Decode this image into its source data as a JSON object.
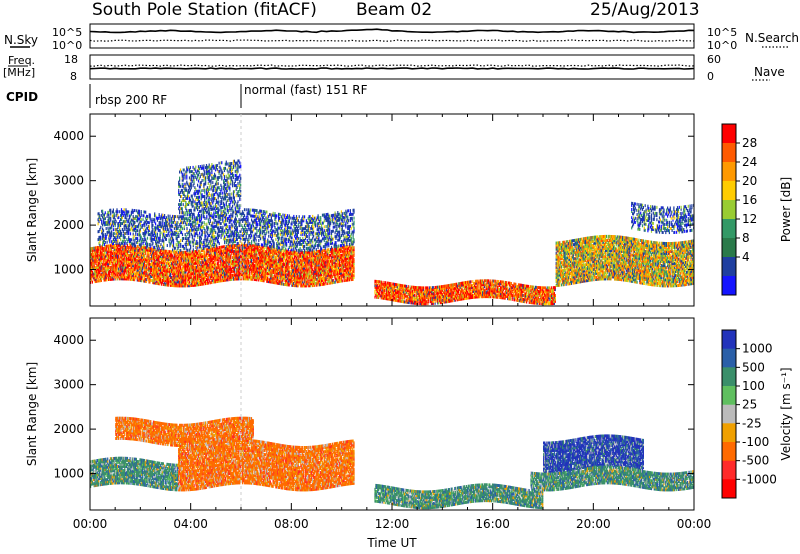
{
  "header": {
    "title": "South Pole Station (fitACF)",
    "beam": "Beam 02",
    "date": "25/Aug/2013"
  },
  "status_panels": {
    "nsky_label": "N.Sky",
    "nsky_ticks": [
      "10^5",
      "10^0"
    ],
    "nsearch_label": "N.Search",
    "nsearch_ticks": [
      "10^5",
      "10^0"
    ],
    "freq_label": "Freq.",
    "freq_unit": "[MHz]",
    "freq_ticks": [
      "18",
      "8"
    ],
    "nave_label": "Nave",
    "nave_ticks": [
      "60",
      "0"
    ],
    "cpid_label": "CPID",
    "cpid_segments": [
      {
        "label": "rbsp 200 RF",
        "start_hour": 0,
        "end_hour": 6
      },
      {
        "label": "normal (fast) 151 RF",
        "start_hour": 6,
        "end_hour": 24
      }
    ]
  },
  "chart_data": [
    {
      "type": "heatmap",
      "name": "power",
      "xlabel": "",
      "ylabel": "Slant Range [km]",
      "xlim": [
        0,
        24
      ],
      "ylim": [
        180,
        4500
      ],
      "y_ticks": [
        1000,
        2000,
        3000,
        4000
      ],
      "colorbar": {
        "label": "Power [dB]",
        "ticks": [
          "28",
          "24",
          "20",
          "16",
          "12",
          "8",
          "4"
        ],
        "colors": [
          "#ff0000",
          "#ff5a00",
          "#ff9900",
          "#ffcc00",
          "#99cc33",
          "#339966",
          "#2a7a4a",
          "#1f3fa0",
          "#1515ff"
        ],
        "range": [
          0,
          30
        ]
      },
      "bands": [
        {
          "t0": 0.0,
          "t1": 10.5,
          "r0": 700,
          "r1": 1500,
          "level": "high"
        },
        {
          "t0": 0.3,
          "t1": 10.5,
          "r0": 1500,
          "r1": 2300,
          "level": "low"
        },
        {
          "t0": 3.5,
          "t1": 6.0,
          "r0": 2300,
          "r1": 3400,
          "level": "low"
        },
        {
          "t0": 11.3,
          "t1": 18.5,
          "r0": 300,
          "r1": 700,
          "level": "high"
        },
        {
          "t0": 18.5,
          "t1": 24.0,
          "r0": 700,
          "r1": 1700,
          "level": "mid"
        },
        {
          "t0": 21.5,
          "t1": 24.0,
          "r0": 1900,
          "r1": 2500,
          "level": "low"
        }
      ]
    },
    {
      "type": "heatmap",
      "name": "velocity",
      "xlabel": "Time UT",
      "ylabel": "Slant Range [km]",
      "xlim": [
        0,
        24
      ],
      "ylim": [
        180,
        4500
      ],
      "x_ticks": [
        "00:00",
        "04:00",
        "08:00",
        "12:00",
        "16:00",
        "20:00",
        "00:00"
      ],
      "y_ticks": [
        1000,
        2000,
        3000,
        4000
      ],
      "colorbar": {
        "label": "Velocity [m s⁻¹]",
        "ticks": [
          "1000",
          "500",
          "100",
          "25",
          "-25",
          "-100",
          "-500",
          "-1000"
        ],
        "colors": [
          "#2233bb",
          "#2a5fa8",
          "#3a8f6a",
          "#5fbf5f",
          "#bbbbbb",
          "#f0a000",
          "#ff6a00",
          "#ff2a2a",
          "#ff0000"
        ]
      },
      "bands": [
        {
          "t0": 0.0,
          "t1": 3.5,
          "r0": 700,
          "r1": 1300,
          "level": "green"
        },
        {
          "t0": 3.5,
          "t1": 10.5,
          "r0": 700,
          "r1": 1700,
          "level": "orange"
        },
        {
          "t0": 1.0,
          "t1": 6.5,
          "r0": 1700,
          "r1": 2200,
          "level": "orange"
        },
        {
          "t0": 11.3,
          "t1": 18.0,
          "r0": 300,
          "r1": 700,
          "level": "green"
        },
        {
          "t0": 18.0,
          "t1": 22.0,
          "r0": 1100,
          "r1": 1800,
          "level": "blue"
        },
        {
          "t0": 17.5,
          "t1": 24.0,
          "r0": 700,
          "r1": 1100,
          "level": "green"
        }
      ]
    }
  ]
}
